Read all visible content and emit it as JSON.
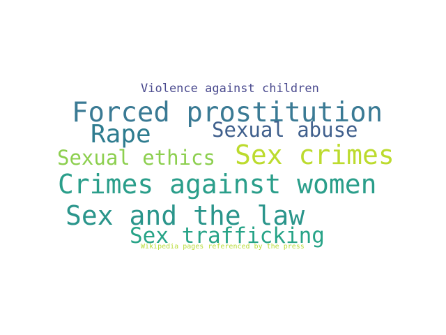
{
  "wordcloud": {
    "words": [
      {
        "text": "Violence against children",
        "color": "#4a4a8e"
      },
      {
        "text": "Forced prostitution",
        "color": "#3a7a94"
      },
      {
        "text": "Rape",
        "color": "#2e7c8f"
      },
      {
        "text": "Sexual abuse",
        "color": "#3f5f8c"
      },
      {
        "text": "Sexual ethics",
        "color": "#8ccf4e"
      },
      {
        "text": "Sex crimes",
        "color": "#bcdb2e"
      },
      {
        "text": "Crimes against women",
        "color": "#2a9e8a"
      },
      {
        "text": "Sex and the law",
        "color": "#2a958b"
      },
      {
        "text": "Sex trafficking",
        "color": "#27a387"
      },
      {
        "text": "Wikipedia pages referenced by the press",
        "color": "#b9dc3a"
      }
    ]
  }
}
